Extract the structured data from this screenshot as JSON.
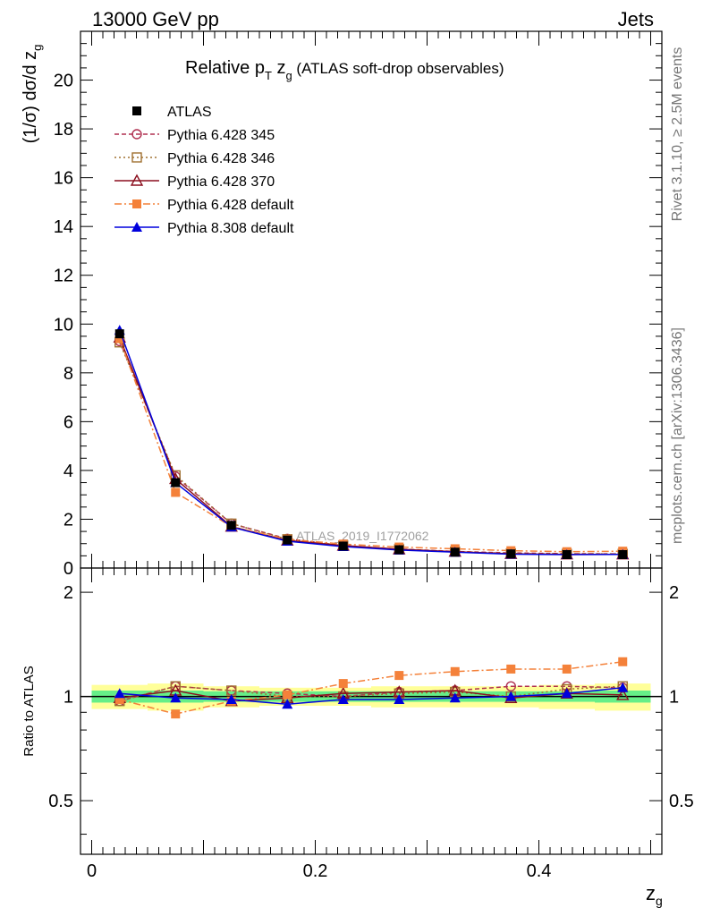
{
  "header": {
    "left": "13000 GeV pp",
    "right": "Jets"
  },
  "side": {
    "rivet": "Rivet 3.1.10, ≥ 2.5M events",
    "mcplots": "mcplots.cern.ch [arXiv:1306.3436]"
  },
  "title": {
    "prefix": "Relative p",
    "sub1": "T",
    "mid": " z",
    "sub2": "g",
    "suffix": " (ATLAS soft-drop observables)"
  },
  "watermark": "ATLAS_2019_I1772062",
  "axes": {
    "ylabel_main": "(1/σ) dσ/d z",
    "ylabel_main_sub": "g",
    "ylabel_ratio": "Ratio to ATLAS",
    "xlabel": "z",
    "xlabel_sub": "g"
  },
  "chart_data": {
    "type": "line",
    "x": [
      0.025,
      0.075,
      0.125,
      0.175,
      0.225,
      0.275,
      0.325,
      0.375,
      0.425,
      0.475
    ],
    "xlim": [
      -0.01,
      0.51
    ],
    "xticks": [
      0,
      0.2,
      0.4
    ],
    "xtick_labels": [
      "0",
      "0.2",
      "0.4"
    ],
    "main": {
      "ylim": [
        0,
        22
      ],
      "yticks": [
        0,
        2,
        4,
        6,
        8,
        10,
        12,
        14,
        16,
        18,
        20
      ],
      "ytick_labels": [
        "0",
        "2",
        "4",
        "6",
        "8",
        "10",
        "12",
        "14",
        "16",
        "18",
        "20"
      ]
    },
    "ratio": {
      "ylim": [
        0.35,
        2.35
      ],
      "yticks": [
        0.5,
        1,
        2
      ],
      "ytick_labels": [
        "0.5",
        "1",
        "2"
      ],
      "band_inner": [
        0.04,
        0.04,
        0.035,
        0.035,
        0.035,
        0.035,
        0.035,
        0.035,
        0.035,
        0.04
      ],
      "band_outer": [
        0.08,
        0.09,
        0.07,
        0.06,
        0.06,
        0.07,
        0.07,
        0.07,
        0.08,
        0.09
      ]
    },
    "legend_position": "top-left",
    "series": [
      {
        "name": "ATLAS",
        "kind": "data",
        "color": "#000000",
        "marker": "square-filled",
        "line": "none",
        "values": [
          9.6,
          3.5,
          1.75,
          1.15,
          0.9,
          0.75,
          0.65,
          0.58,
          0.55,
          0.55
        ],
        "ratio": [
          1,
          1,
          1,
          1,
          1,
          1,
          1,
          1,
          1,
          1
        ]
      },
      {
        "name": "Pythia 6.428 345",
        "kind": "mc",
        "color": "#b03050",
        "marker": "circle-open",
        "line": "dashed",
        "values": [
          9.3,
          3.75,
          1.82,
          1.2,
          0.92,
          0.78,
          0.68,
          0.62,
          0.59,
          0.58
        ],
        "ratio": [
          0.97,
          1.07,
          1.04,
          1.02,
          1.0,
          1.03,
          1.04,
          1.07,
          1.07,
          1.06
        ]
      },
      {
        "name": "Pythia 6.428 346",
        "kind": "mc",
        "color": "#a07030",
        "marker": "square-open",
        "line": "dotted",
        "values": [
          9.25,
          3.8,
          1.82,
          1.18,
          0.92,
          0.77,
          0.67,
          0.6,
          0.58,
          0.58
        ],
        "ratio": [
          0.97,
          1.07,
          1.04,
          1.0,
          1.0,
          1.02,
          1.03,
          1.0,
          1.05,
          1.07
        ]
      },
      {
        "name": "Pythia 6.428 370",
        "kind": "mc",
        "color": "#8b0f1e",
        "marker": "triangle-open",
        "line": "solid",
        "values": [
          9.45,
          3.65,
          1.7,
          1.13,
          0.92,
          0.77,
          0.67,
          0.58,
          0.56,
          0.56
        ],
        "ratio": [
          0.99,
          1.04,
          0.97,
          0.99,
          1.02,
          1.03,
          1.04,
          0.99,
          1.02,
          1.01
        ]
      },
      {
        "name": "Pythia 6.428 default",
        "kind": "mc",
        "color": "#f4813a",
        "marker": "square-filled",
        "line": "dashdot",
        "values": [
          9.4,
          3.1,
          1.7,
          1.18,
          0.98,
          0.86,
          0.79,
          0.71,
          0.67,
          0.69
        ],
        "ratio": [
          0.98,
          0.89,
          0.97,
          1.01,
          1.09,
          1.15,
          1.18,
          1.2,
          1.2,
          1.26
        ]
      },
      {
        "name": "Pythia 8.308 default",
        "kind": "mc",
        "color": "#0000dd",
        "marker": "triangle-filled",
        "line": "solid",
        "values": [
          9.75,
          3.5,
          1.68,
          1.1,
          0.88,
          0.74,
          0.65,
          0.57,
          0.55,
          0.56
        ],
        "ratio": [
          1.02,
          0.99,
          0.98,
          0.95,
          0.98,
          0.98,
          0.99,
          1.0,
          1.02,
          1.06
        ]
      }
    ]
  }
}
